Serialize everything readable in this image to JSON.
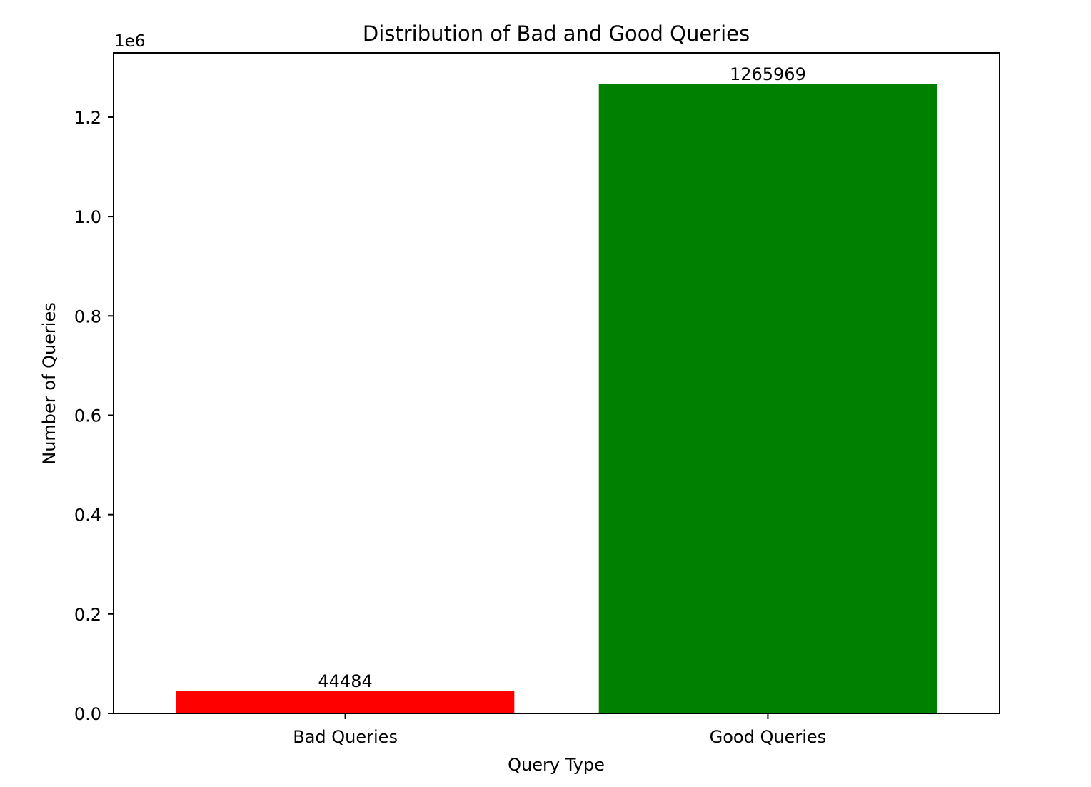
{
  "chart_data": {
    "type": "bar",
    "title": "Distribution of Bad and Good Queries",
    "xlabel": "Query Type",
    "ylabel": "Number of Queries",
    "categories": [
      "Bad Queries",
      "Good Queries"
    ],
    "values": [
      44484,
      1265969
    ],
    "data_labels": [
      "44484",
      "1265969"
    ],
    "colors": [
      "#ff0000",
      "#008000"
    ],
    "ylim": [
      0,
      1329267
    ],
    "yticks": [
      0.0,
      0.2,
      0.4,
      0.6,
      0.8,
      1.0,
      1.2
    ],
    "ytick_labels": [
      "0.0",
      "0.2",
      "0.4",
      "0.6",
      "0.8",
      "1.0",
      "1.2"
    ],
    "y_multiplier": 1000000,
    "offset_text": "1e6",
    "grid": false,
    "legend": false
  }
}
